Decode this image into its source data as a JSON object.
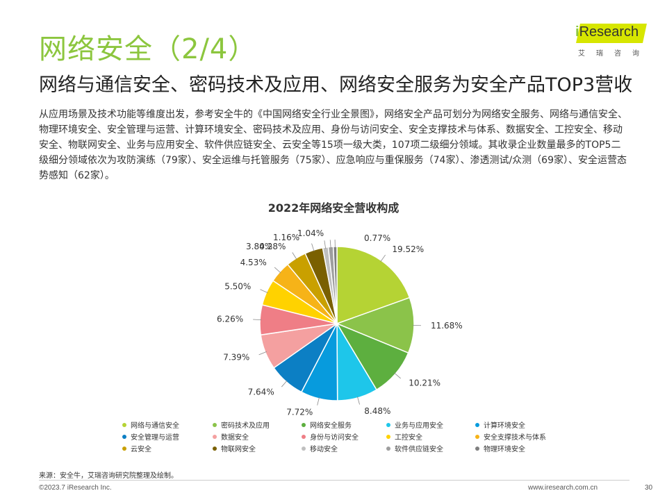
{
  "header": {
    "title": "网络安全（2/4）",
    "subtitle": "网络与通信安全、密码技术及应用、网络安全服务为安全产品TOP3营收"
  },
  "logo": {
    "brand_i": "i",
    "brand_rest": "Research",
    "sub": "艾瑞咨询",
    "accent_color": "#D7E600"
  },
  "body_text": "从应用场景及技术功能等维度出发，参考安全牛的《中国网络安全行业全景图》，网络安全产品可划分为网络安全服务、网络与通信安全、物理环境安全、安全管理与运营、计算环境安全、密码技术及应用、身份与访问安全、安全支撑技术与体系、数据安全、工控安全、移动安全、物联网安全、业务与应用安全、软件供应链安全、云安全等15项一级大类，107项二级细分领域。其收录企业数量最多的TOP5二级细分领域依次为攻防演练（79家）、安全运维与托管服务（75家）、应急响应与重保服务（74家）、渗透测试/众测（69家）、安全运营态势感知（62家）。",
  "chart_data": {
    "type": "pie",
    "title": "2022年网络安全营收构成",
    "unit": "%",
    "legend_position": "bottom",
    "slices": [
      {
        "name": "网络与通信安全",
        "value": 19.52,
        "label": "19.52%",
        "color": "#B5D334"
      },
      {
        "name": "密码技术及应用",
        "value": 11.68,
        "label": "11.68%",
        "color": "#8BC34A"
      },
      {
        "name": "网络安全服务",
        "value": 10.21,
        "label": "10.21%",
        "color": "#5DAF3F"
      },
      {
        "name": "业务与应用安全",
        "value": 8.48,
        "label": "8.48%",
        "color": "#1EC6EA"
      },
      {
        "name": "计算环境安全",
        "value": 7.72,
        "label": "7.72%",
        "color": "#079BDD"
      },
      {
        "name": "安全管理与运营",
        "value": 7.64,
        "label": "7.64%",
        "color": "#0C7FC4"
      },
      {
        "name": "数据安全",
        "value": 7.39,
        "label": "7.39%",
        "color": "#F4A0A0"
      },
      {
        "name": "身份与访问安全",
        "value": 6.26,
        "label": "6.26%",
        "color": "#EF7E86"
      },
      {
        "name": "工控安全",
        "value": 5.5,
        "label": "5.50%",
        "color": "#FFD200"
      },
      {
        "name": "安全支撑技术与体系",
        "value": 4.53,
        "label": "4.53%",
        "color": "#F6B318"
      },
      {
        "name": "云安全",
        "value": 4.28,
        "label": "4.28%",
        "color": "#C9A000"
      },
      {
        "name": "物联网安全",
        "value": 3.8,
        "label": "3.80%",
        "color": "#7A6000"
      },
      {
        "name": "移动安全",
        "value": 1.16,
        "label": "1.16%",
        "color": "#BFBFBF"
      },
      {
        "name": "软件供应链安全",
        "value": 1.04,
        "label": "1.04%",
        "color": "#9E9E9E"
      },
      {
        "name": "物理环境安全",
        "value": 0.77,
        "label": "0.77%",
        "color": "#7F7F7F"
      }
    ]
  },
  "footer": {
    "source": "来源：安全牛，艾瑞咨询研究院整理及绘制。",
    "copyright": "©2023.7 iResearch Inc.",
    "site": "www.iresearch.com.cn",
    "page": "30"
  }
}
